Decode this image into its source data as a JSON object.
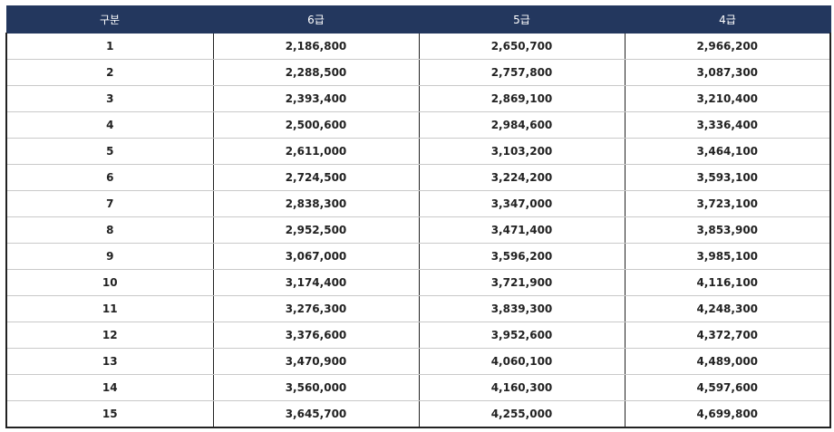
{
  "table": {
    "headers": [
      "구분",
      "6급",
      "5급",
      "4급"
    ],
    "rows": [
      [
        "1",
        "2,186,800",
        "2,650,700",
        "2,966,200"
      ],
      [
        "2",
        "2,288,500",
        "2,757,800",
        "3,087,300"
      ],
      [
        "3",
        "2,393,400",
        "2,869,100",
        "3,210,400"
      ],
      [
        "4",
        "2,500,600",
        "2,984,600",
        "3,336,400"
      ],
      [
        "5",
        "2,611,000",
        "3,103,200",
        "3,464,100"
      ],
      [
        "6",
        "2,724,500",
        "3,224,200",
        "3,593,100"
      ],
      [
        "7",
        "2,838,300",
        "3,347,000",
        "3,723,100"
      ],
      [
        "8",
        "2,952,500",
        "3,471,400",
        "3,853,900"
      ],
      [
        "9",
        "3,067,000",
        "3,596,200",
        "3,985,100"
      ],
      [
        "10",
        "3,174,400",
        "3,721,900",
        "4,116,100"
      ],
      [
        "11",
        "3,276,300",
        "3,839,300",
        "4,248,300"
      ],
      [
        "12",
        "3,376,600",
        "3,952,600",
        "4,372,700"
      ],
      [
        "13",
        "3,470,900",
        "4,060,100",
        "4,489,000"
      ],
      [
        "14",
        "3,560,000",
        "4,160,300",
        "4,597,600"
      ],
      [
        "15",
        "3,645,700",
        "4,255,000",
        "4,699,800"
      ]
    ]
  },
  "colors": {
    "header_background": "#23375e",
    "header_text": "#ffffff",
    "row_text": "#222222"
  }
}
